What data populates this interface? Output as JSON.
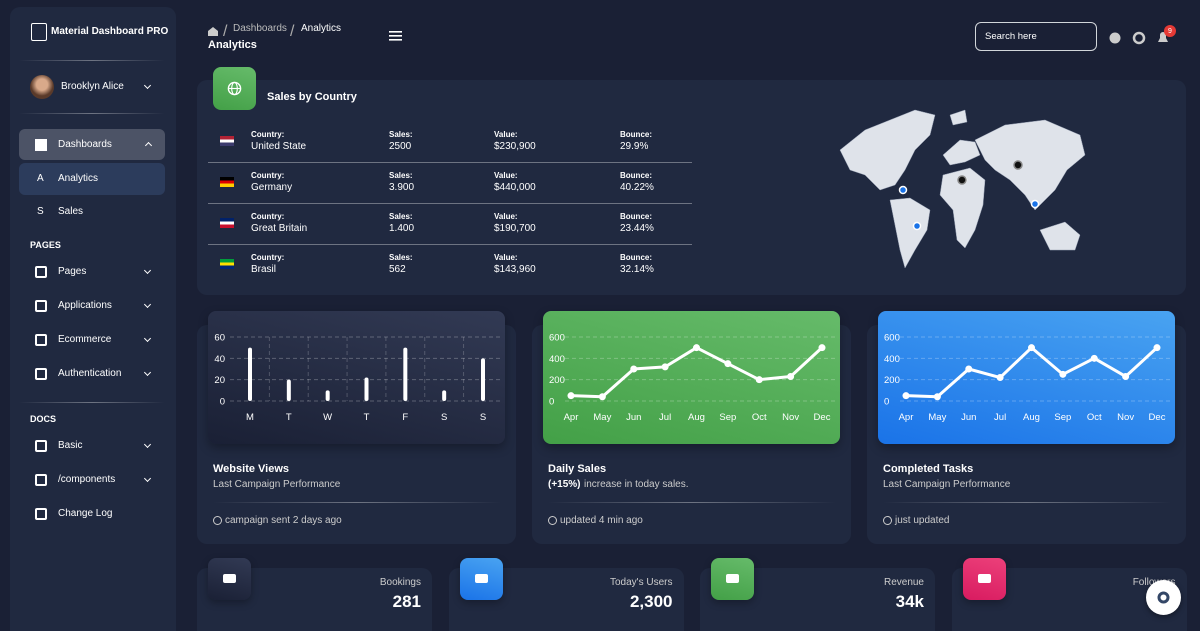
{
  "sidebar": {
    "brand": "Material Dashboard PRO",
    "user": "Brooklyn Alice",
    "dashboards": "Dashboards",
    "sub": [
      {
        "short": "A",
        "label": "Analytics"
      },
      {
        "short": "S",
        "label": "Sales"
      }
    ],
    "sections": [
      {
        "title": "PAGES",
        "items": [
          "Pages",
          "Applications",
          "Ecommerce",
          "Authentication"
        ]
      },
      {
        "title": "DOCS",
        "items": [
          "Basic",
          "/components",
          "Change Log"
        ]
      }
    ]
  },
  "header": {
    "breadcrumb": [
      "Dashboards",
      "Analytics"
    ],
    "title": "Analytics",
    "search": "Search here",
    "notifications": "9"
  },
  "sales_by_country": {
    "title": "Sales by Country",
    "columns": [
      "Country:",
      "Sales:",
      "Value:",
      "Bounce:"
    ],
    "rows": [
      [
        "United State",
        "2500",
        "$230,900",
        "29.9%"
      ],
      [
        "Germany",
        "3.900",
        "$440,000",
        "40.22%"
      ],
      [
        "Great Britain",
        "1.400",
        "$190,700",
        "23.44%"
      ],
      [
        "Brasil",
        "562",
        "$143,960",
        "32.14%"
      ]
    ]
  },
  "charts": [
    {
      "type": "bar",
      "title": "Website Views",
      "subtitle": "Last Campaign Performance",
      "footer": "campaign sent 2 days ago",
      "categories": [
        "M",
        "T",
        "W",
        "T",
        "F",
        "S",
        "S"
      ],
      "values": [
        50,
        20,
        10,
        22,
        50,
        10,
        40
      ],
      "ylim": [
        0,
        60
      ],
      "yticks": [
        0,
        20,
        40,
        60
      ],
      "color": "#ffffff",
      "grid": true
    },
    {
      "type": "line",
      "title": "Daily Sales",
      "subtitle_highlight": "(+15%)",
      "subtitle": "increase in today sales.",
      "footer": "updated 4 min ago",
      "categories": [
        "Apr",
        "May",
        "Jun",
        "Jul",
        "Aug",
        "Sep",
        "Oct",
        "Nov",
        "Dec"
      ],
      "values": [
        50,
        40,
        300,
        320,
        500,
        350,
        200,
        230,
        500
      ],
      "ylim": [
        0,
        600
      ],
      "yticks": [
        0,
        200,
        400,
        600
      ],
      "color": "#ffffff",
      "grid": true
    },
    {
      "type": "line",
      "title": "Completed Tasks",
      "subtitle": "Last Campaign Performance",
      "footer": "just updated",
      "categories": [
        "Apr",
        "May",
        "Jun",
        "Jul",
        "Aug",
        "Sep",
        "Oct",
        "Nov",
        "Dec"
      ],
      "values": [
        50,
        40,
        300,
        220,
        500,
        250,
        400,
        230,
        500
      ],
      "ylim": [
        0,
        600
      ],
      "yticks": [
        0,
        200,
        400,
        600
      ],
      "color": "#ffffff",
      "grid": true
    }
  ],
  "stats": [
    {
      "label": "Bookings",
      "value": "281"
    },
    {
      "label": "Today's Users",
      "value": "2,300"
    },
    {
      "label": "Revenue",
      "value": "34k"
    },
    {
      "label": "Followers"
    }
  ]
}
